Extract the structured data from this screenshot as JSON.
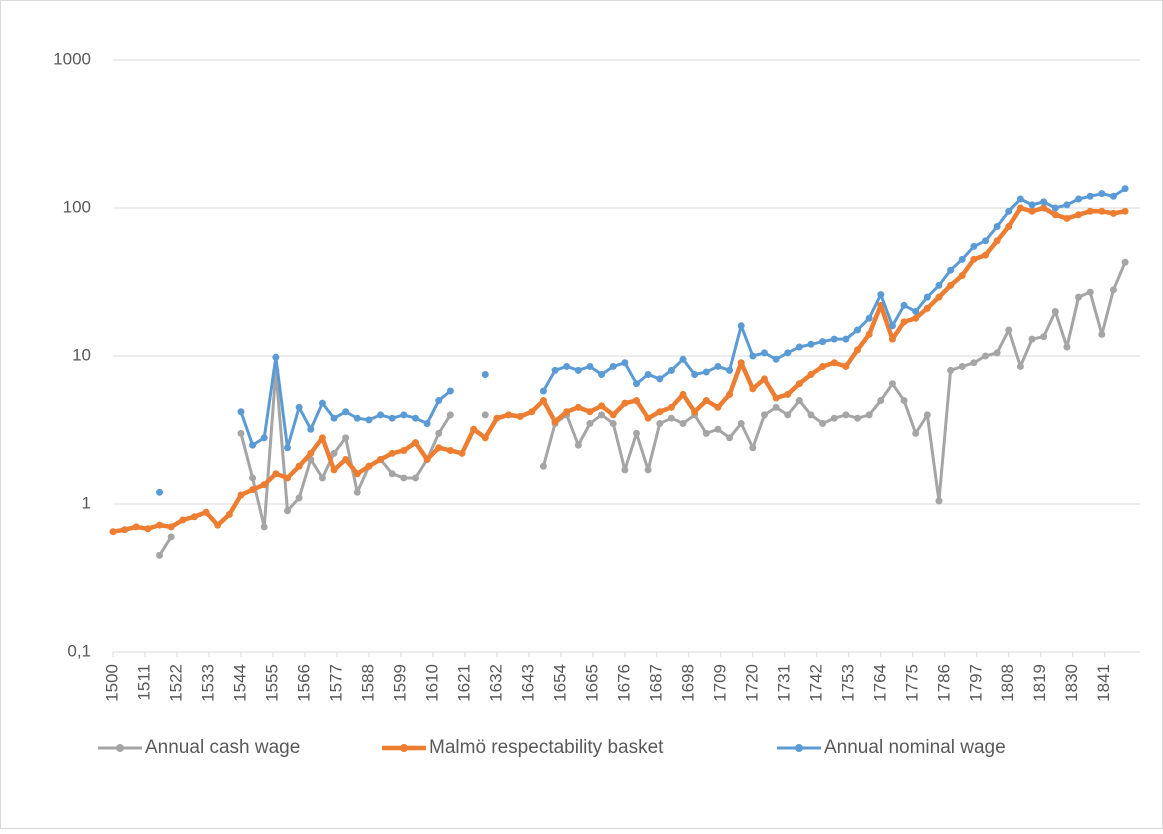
{
  "chart_data": {
    "type": "line",
    "log_scale": true,
    "grid": true,
    "legend": "bottom",
    "x": [
      1500,
      1504,
      1508,
      1512,
      1516,
      1520,
      1524,
      1528,
      1532,
      1536,
      1540,
      1544,
      1548,
      1552,
      1556,
      1560,
      1564,
      1568,
      1572,
      1576,
      1580,
      1584,
      1588,
      1592,
      1596,
      1600,
      1604,
      1608,
      1612,
      1616,
      1620,
      1624,
      1628,
      1632,
      1636,
      1640,
      1644,
      1648,
      1652,
      1656,
      1660,
      1664,
      1668,
      1672,
      1676,
      1680,
      1684,
      1688,
      1692,
      1696,
      1700,
      1704,
      1708,
      1712,
      1716,
      1720,
      1724,
      1728,
      1732,
      1736,
      1740,
      1744,
      1748,
      1752,
      1756,
      1760,
      1764,
      1768,
      1772,
      1776,
      1780,
      1784,
      1788,
      1792,
      1796,
      1800,
      1804,
      1808,
      1812,
      1816,
      1820,
      1824,
      1828,
      1832,
      1836,
      1840,
      1844,
      1848
    ],
    "xlim": [
      1500,
      1849
    ],
    "xticks": [
      1500,
      1511,
      1522,
      1533,
      1544,
      1555,
      1566,
      1577,
      1588,
      1599,
      1610,
      1621,
      1632,
      1643,
      1654,
      1665,
      1676,
      1687,
      1698,
      1709,
      1720,
      1731,
      1742,
      1753,
      1764,
      1775,
      1786,
      1797,
      1808,
      1819,
      1830,
      1841
    ],
    "ylim": [
      0.1,
      1000
    ],
    "yticks": [
      {
        "value": 0.1,
        "label": "0,1"
      },
      1,
      10,
      100,
      1000
    ],
    "series": [
      {
        "name": "Annual cash wage",
        "color": "#a5a5a5",
        "values": [
          null,
          null,
          null,
          null,
          0.45,
          0.6,
          null,
          null,
          null,
          null,
          null,
          3.0,
          1.5,
          0.7,
          8.0,
          0.9,
          1.1,
          2.0,
          1.5,
          2.2,
          2.8,
          1.2,
          1.8,
          2.0,
          1.6,
          1.5,
          1.5,
          2.0,
          3.0,
          4.0,
          null,
          null,
          4.0,
          null,
          null,
          null,
          null,
          1.8,
          3.5,
          4.0,
          2.5,
          3.5,
          4.0,
          3.5,
          1.7,
          3.0,
          1.7,
          3.5,
          3.8,
          3.5,
          4.0,
          3.0,
          3.2,
          2.8,
          3.5,
          2.4,
          4.0,
          4.5,
          4.0,
          5.0,
          4.0,
          3.5,
          3.8,
          4.0,
          3.8,
          4.0,
          5.0,
          6.5,
          5.0,
          3.0,
          4.0,
          1.05,
          8.0,
          8.5,
          9.0,
          10,
          10.5,
          15,
          8.5,
          13,
          13.5,
          20,
          11.5,
          25,
          27,
          14,
          28,
          43
        ]
      },
      {
        "name": "Malmö respectability basket",
        "color": "#ed7d31",
        "values": [
          0.65,
          0.67,
          0.7,
          0.68,
          0.72,
          0.7,
          0.78,
          0.82,
          0.88,
          0.72,
          0.85,
          1.15,
          1.25,
          1.35,
          1.6,
          1.5,
          1.8,
          2.2,
          2.8,
          1.7,
          2.0,
          1.6,
          1.8,
          2.0,
          2.2,
          2.3,
          2.6,
          2.0,
          2.4,
          2.3,
          2.2,
          3.2,
          2.8,
          3.8,
          4.0,
          3.9,
          4.2,
          5.0,
          3.6,
          4.2,
          4.5,
          4.2,
          4.6,
          4.0,
          4.8,
          5.0,
          3.8,
          4.2,
          4.5,
          5.5,
          4.2,
          5.0,
          4.5,
          5.5,
          9.0,
          6.0,
          7.0,
          5.2,
          5.5,
          6.5,
          7.5,
          8.5,
          9.0,
          8.5,
          11,
          14,
          22,
          13,
          17,
          18,
          21,
          25,
          30,
          35,
          45,
          48,
          60,
          75,
          100,
          95,
          100,
          90,
          85,
          90,
          95,
          95,
          92,
          95
        ]
      },
      {
        "name": "Annual nominal wage",
        "color": "#5b9bd5",
        "values": [
          null,
          null,
          null,
          null,
          1.2,
          null,
          null,
          null,
          null,
          null,
          null,
          4.2,
          2.5,
          2.8,
          9.8,
          2.4,
          4.5,
          3.2,
          4.8,
          3.8,
          4.2,
          3.8,
          3.7,
          4.0,
          3.8,
          4.0,
          3.8,
          3.5,
          5.0,
          5.8,
          null,
          null,
          7.5,
          null,
          null,
          null,
          null,
          5.8,
          8.0,
          8.5,
          8.0,
          8.5,
          7.5,
          8.5,
          9.0,
          6.5,
          7.5,
          7.0,
          8.0,
          9.5,
          7.5,
          7.8,
          8.5,
          8.0,
          16,
          10,
          10.5,
          9.5,
          10.5,
          11.5,
          12,
          12.5,
          13,
          13,
          15,
          18,
          26,
          16,
          22,
          20,
          25,
          30,
          38,
          45,
          55,
          60,
          75,
          95,
          115,
          105,
          110,
          100,
          105,
          115,
          120,
          125,
          120,
          135
        ]
      }
    ]
  }
}
